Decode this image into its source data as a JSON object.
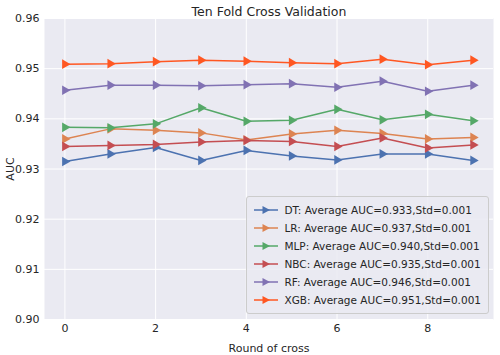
{
  "chart_data": {
    "type": "line",
    "title": "Ten Fold Cross Validation",
    "x_label": "Round of cross",
    "y_label": "AUC",
    "x": [
      0,
      1,
      2,
      3,
      4,
      5,
      6,
      7,
      8,
      9
    ],
    "xlim": [
      -0.45,
      9.45
    ],
    "xticks": [
      0,
      2,
      4,
      6,
      8
    ],
    "ylim": [
      0.9,
      0.96
    ],
    "yticks": [
      {
        "value": 0.9,
        "label": "0.90"
      },
      0.91,
      0.92,
      0.93,
      0.94,
      0.95,
      0.96
    ],
    "grid": true,
    "legend": "lower right",
    "marker": "triangle-right",
    "series": [
      {
        "name": "DT: Average AUC=0.933,Std=0.001",
        "color": "#4c72b0",
        "values": [
          0.9315,
          0.933,
          0.9343,
          0.9317,
          0.9337,
          0.9326,
          0.9318,
          0.933,
          0.933,
          0.9317
        ]
      },
      {
        "name": "LR: Average AUC=0.937,Std=0.001",
        "color": "#dd8452",
        "values": [
          0.936,
          0.938,
          0.9377,
          0.9372,
          0.9358,
          0.937,
          0.9377,
          0.9371,
          0.936,
          0.9363
        ]
      },
      {
        "name": "MLP: Average AUC=0.940,Std=0.001",
        "color": "#55a868",
        "values": [
          0.9383,
          0.9382,
          0.939,
          0.9422,
          0.9395,
          0.9397,
          0.9419,
          0.9398,
          0.9409,
          0.9396
        ]
      },
      {
        "name": "NBC: Average AUC=0.935,Std=0.001",
        "color": "#c44e52",
        "values": [
          0.9345,
          0.9347,
          0.9349,
          0.9354,
          0.9357,
          0.9355,
          0.9345,
          0.9362,
          0.9342,
          0.9348
        ]
      },
      {
        "name": "RF: Average AUC=0.946,Std=0.001",
        "color": "#8172b3",
        "values": [
          0.9457,
          0.9467,
          0.9467,
          0.9466,
          0.9468,
          0.947,
          0.9463,
          0.9475,
          0.9455,
          0.9467
        ]
      },
      {
        "name": "XGB: Average AUC=0.951,Std=0.001",
        "color": "#ff5722",
        "values": [
          0.9509,
          0.951,
          0.9514,
          0.9517,
          0.9515,
          0.9512,
          0.951,
          0.9519,
          0.9508,
          0.9517
        ]
      }
    ]
  }
}
